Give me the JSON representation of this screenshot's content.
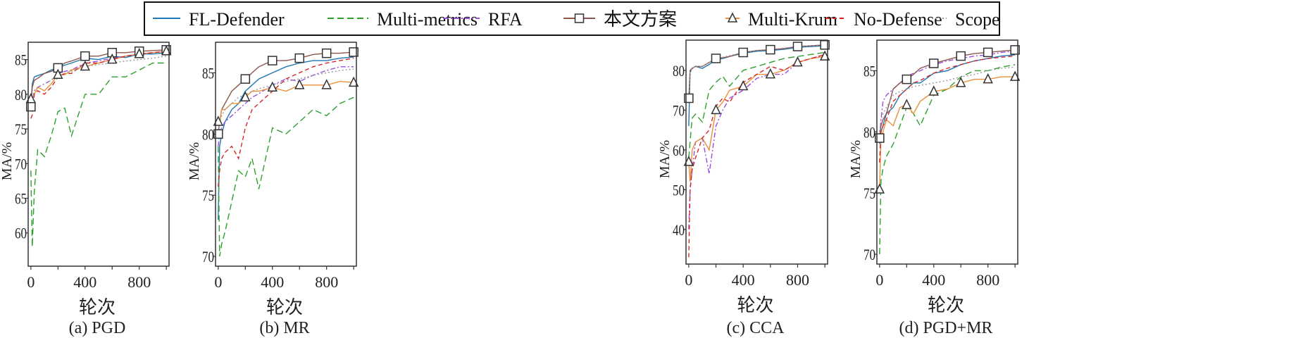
{
  "legend": [
    {
      "name": "FL-Defender",
      "color": "#1f77b4",
      "dash": "",
      "marker": ""
    },
    {
      "name": "Multi-metrics",
      "color": "#2ca02c",
      "dash": "9,5",
      "marker": ""
    },
    {
      "name": "RFA",
      "color": "#9b4de0",
      "dash": "7,3,2,3",
      "marker": ""
    },
    {
      "name": "本文方案",
      "color": "#8c564b",
      "dash": "",
      "marker": "square"
    },
    {
      "name": "Multi-Krum",
      "color": "#e8913a",
      "dash": "",
      "marker": "triangle"
    },
    {
      "name": "No-Defense",
      "color": "#d62728",
      "dash": "6,4",
      "marker": ""
    },
    {
      "name": "Scope",
      "color": "#999999",
      "dash": "2,3",
      "marker": ""
    }
  ],
  "chart_data": [
    {
      "type": "line",
      "title": "(a) PGD",
      "xlabel": "轮次",
      "ylabel": "MA/%",
      "xlim": [
        -20,
        1020
      ],
      "ylim": [
        55.2,
        87.5
      ],
      "xticks": [
        0,
        400,
        800
      ],
      "yticks": [
        60,
        65,
        70,
        75,
        80,
        85
      ],
      "marker_x": [
        0,
        200,
        400,
        600,
        800,
        1000
      ],
      "x": [
        0,
        10,
        25,
        50,
        100,
        150,
        200,
        250,
        300,
        400,
        500,
        600,
        700,
        800,
        900,
        1000
      ],
      "series": [
        {
          "name": "FL-Defender",
          "values": [
            78,
            81.5,
            82.5,
            82.7,
            83,
            83.5,
            83.8,
            84.2,
            84.5,
            85.2,
            85,
            85.5,
            85.3,
            85.8,
            85.8,
            86
          ]
        },
        {
          "name": "Multi-metrics",
          "values": [
            69,
            58,
            66,
            72,
            71,
            74,
            77.5,
            78,
            74,
            80,
            80,
            82.5,
            82.5,
            83.5,
            84.5,
            84.5
          ]
        },
        {
          "name": "RFA",
          "values": [
            78,
            79,
            80.5,
            81,
            81.5,
            82,
            83,
            83.3,
            83.5,
            84.5,
            84.8,
            85.2,
            85.5,
            85.8,
            86,
            86.2
          ]
        },
        {
          "name": "本文方案",
          "values": [
            78.2,
            81,
            82,
            82.3,
            83,
            83.3,
            83.8,
            84.5,
            84.8,
            85.5,
            85.5,
            86,
            86,
            86.2,
            86.3,
            86.4
          ]
        },
        {
          "name": "Multi-Krum",
          "values": [
            79.3,
            79.5,
            80,
            81,
            80.5,
            81.5,
            82.8,
            82.8,
            83.5,
            84,
            84.5,
            85,
            85.5,
            85.8,
            86,
            86.2
          ]
        },
        {
          "name": "No-Defense",
          "values": [
            76.5,
            77,
            80,
            80.5,
            80,
            81,
            82.5,
            83,
            83,
            84.5,
            84.5,
            85,
            85.5,
            85.8,
            86,
            86.2
          ]
        },
        {
          "name": "Scope",
          "values": [
            78,
            79,
            80.5,
            81,
            81.5,
            82,
            82.7,
            83,
            83.3,
            84,
            84.3,
            84.5,
            84.8,
            85,
            85.2,
            85.5
          ]
        }
      ]
    },
    {
      "type": "line",
      "title": "(b) MR",
      "xlabel": "轮次",
      "ylabel": "MA/%",
      "xlim": [
        -20,
        1020
      ],
      "ylim": [
        69.2,
        87.5
      ],
      "xticks": [
        0,
        400,
        800
      ],
      "yticks": [
        70,
        75,
        80,
        85
      ],
      "marker_x": [
        0,
        200,
        400,
        600,
        800,
        1000
      ],
      "x": [
        0,
        10,
        25,
        50,
        100,
        150,
        200,
        250,
        300,
        400,
        500,
        600,
        700,
        800,
        900,
        1000
      ],
      "series": [
        {
          "name": "FL-Defender",
          "values": [
            73,
            79,
            80,
            81,
            82,
            82.5,
            83.5,
            84,
            84.5,
            85,
            85.5,
            85.8,
            86,
            86,
            86.2,
            86.3
          ]
        },
        {
          "name": "Multi-metrics",
          "values": [
            79,
            70,
            71,
            72,
            74.5,
            77,
            76.5,
            78,
            75.5,
            80.5,
            80,
            81,
            82,
            81.5,
            82.5,
            83
          ]
        },
        {
          "name": "RFA",
          "values": [
            79,
            80,
            80.5,
            81,
            81.5,
            82,
            82.5,
            83,
            83.3,
            84,
            84.5,
            84.3,
            84.8,
            85.2,
            85.5,
            85.5
          ]
        },
        {
          "name": "本文方案",
          "values": [
            80,
            81,
            82,
            82.5,
            83.5,
            84,
            84.5,
            85,
            85.5,
            86,
            86,
            86.2,
            86.5,
            86.6,
            86.6,
            86.7
          ]
        },
        {
          "name": "Multi-Krum",
          "values": [
            81,
            81,
            82,
            82,
            82.5,
            82.5,
            83,
            83.5,
            83.5,
            83.8,
            83.5,
            84,
            84,
            84,
            84.3,
            84.2
          ]
        },
        {
          "name": "No-Defense",
          "values": [
            75.7,
            77,
            78,
            78.5,
            79,
            78,
            80.5,
            82,
            82.5,
            83.5,
            84.5,
            85,
            85.5,
            85.8,
            86,
            86.2
          ]
        },
        {
          "name": "Scope",
          "values": [
            80,
            81,
            81.5,
            82,
            82.5,
            83,
            83.2,
            83.5,
            83.7,
            84,
            84.3,
            84.5,
            84.8,
            85,
            85.2,
            85.3
          ]
        }
      ]
    },
    {
      "type": "line",
      "title": "(c) CCA",
      "xlabel": "轮次",
      "ylabel": "MA/%",
      "xlim": [
        -20,
        1020
      ],
      "ylim": [
        31.3,
        87.6
      ],
      "xticks": [
        0,
        400,
        800
      ],
      "yticks": [
        40,
        50,
        60,
        70,
        80
      ],
      "marker_x": [
        0,
        200,
        400,
        600,
        800,
        1000
      ],
      "x": [
        0,
        10,
        25,
        50,
        100,
        150,
        200,
        250,
        300,
        400,
        500,
        600,
        700,
        800,
        900,
        1000
      ],
      "series": [
        {
          "name": "FL-Defender",
          "values": [
            66,
            79.5,
            80.5,
            81,
            80.5,
            81.5,
            82.8,
            83,
            83.5,
            84.3,
            84.8,
            85,
            85.3,
            85.8,
            86,
            86.2
          ]
        },
        {
          "name": "Multi-metrics",
          "values": [
            58,
            62,
            68,
            69,
            67,
            75,
            77,
            78.5,
            76,
            80,
            81,
            82,
            83,
            83.5,
            84,
            84.5
          ]
        },
        {
          "name": "RFA",
          "values": [
            40,
            50,
            55,
            62,
            63,
            54,
            66,
            70,
            73,
            75,
            78,
            79,
            79,
            82,
            83,
            84
          ]
        },
        {
          "name": "本文方案",
          "values": [
            73,
            80,
            80.5,
            81,
            81,
            82,
            83,
            83.2,
            83.5,
            84.5,
            85,
            85.2,
            85.5,
            86,
            86.2,
            86.4
          ]
        },
        {
          "name": "Multi-Krum",
          "values": [
            57,
            52,
            60,
            62,
            63,
            60,
            70,
            72,
            75,
            76,
            79,
            79,
            80,
            82,
            83,
            83.5
          ]
        },
        {
          "name": "No-Defense",
          "values": [
            33,
            50,
            55,
            58,
            63,
            65,
            71,
            73,
            72,
            77,
            79,
            81,
            80,
            82,
            83,
            84
          ]
        },
        {
          "name": "Scope",
          "values": [
            73,
            79.5,
            80.5,
            81,
            81,
            82,
            83,
            83.3,
            83.7,
            84.5,
            85,
            85.3,
            85.6,
            86,
            86.2,
            86.4
          ]
        }
      ]
    },
    {
      "type": "line",
      "title": "(d) PGD+MR",
      "xlabel": "轮次",
      "ylabel": "MA/%",
      "xlim": [
        -20,
        1020
      ],
      "ylim": [
        69.2,
        87.5
      ],
      "xticks": [
        0,
        400,
        800
      ],
      "yticks": [
        70,
        75,
        80,
        85
      ],
      "marker_x": [
        0,
        200,
        400,
        600,
        800,
        1000
      ],
      "x": [
        0,
        10,
        25,
        50,
        100,
        150,
        200,
        250,
        300,
        400,
        500,
        600,
        700,
        800,
        900,
        1000
      ],
      "series": [
        {
          "name": "FL-Defender",
          "values": [
            79,
            80,
            80.5,
            81.5,
            82,
            83,
            83.5,
            84,
            84,
            84.8,
            85,
            85.5,
            85.8,
            86,
            86.2,
            86.3
          ]
        },
        {
          "name": "Multi-metrics",
          "values": [
            70,
            76,
            77,
            78,
            79,
            80.5,
            82,
            81.5,
            80.5,
            83,
            83.5,
            84.5,
            85,
            85,
            85.3,
            85.5
          ]
        },
        {
          "name": "RFA",
          "values": [
            79.5,
            81,
            82.5,
            83,
            83.5,
            84,
            84.5,
            84.8,
            85,
            85.5,
            85.8,
            86,
            86.2,
            86.3,
            86.5,
            86.6
          ]
        },
        {
          "name": "本文方案",
          "values": [
            79.5,
            80.5,
            81,
            81.5,
            83.5,
            84,
            84.3,
            84.7,
            85.2,
            85.6,
            85.9,
            86.2,
            86.4,
            86.5,
            86.6,
            86.7
          ]
        },
        {
          "name": "Multi-Krum",
          "values": [
            75.3,
            79.5,
            80,
            81,
            80.5,
            82,
            82.2,
            81.5,
            82.5,
            83.3,
            83.5,
            84,
            84.3,
            84.3,
            84.5,
            84.5
          ]
        },
        {
          "name": "No-Defense",
          "values": [
            77.5,
            80,
            80.5,
            81,
            82.5,
            83,
            83.5,
            84,
            84.2,
            84.8,
            85.2,
            85.5,
            85.8,
            86,
            86.1,
            86.2
          ]
        },
        {
          "name": "Scope",
          "values": [
            80,
            81,
            81.5,
            82,
            83,
            83.3,
            83.5,
            83.7,
            83.8,
            84,
            84.2,
            84.5,
            84.7,
            85,
            85.2,
            85.3
          ]
        }
      ]
    }
  ]
}
